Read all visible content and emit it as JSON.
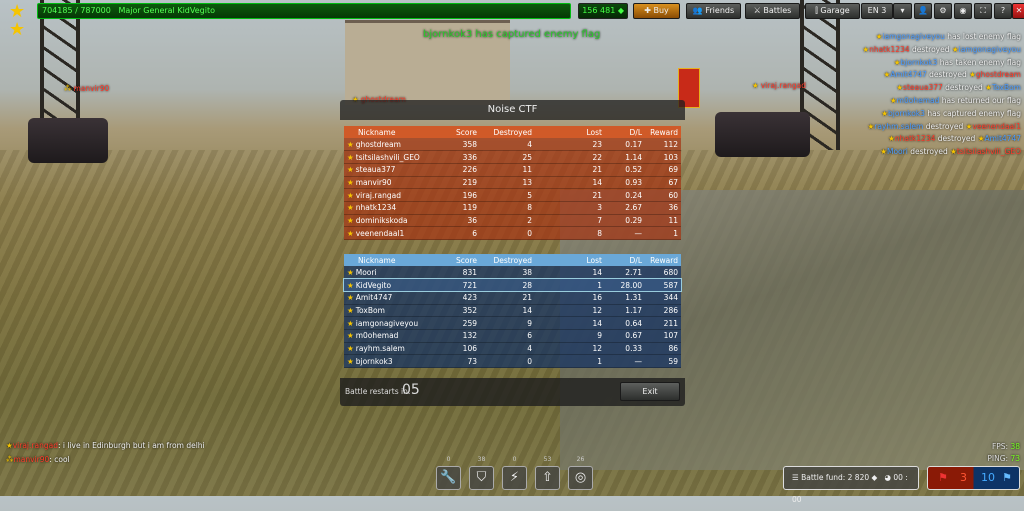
{
  "topbar": {
    "experience": "704185 / 787000",
    "rank_name": "Major General KidVegito",
    "crystals": "156 481",
    "buy": "Buy",
    "friends": "Friends",
    "battles": "Battles",
    "garage": "Garage",
    "language": "EN 3"
  },
  "capture_message": "bjornkok3 has captured enemy flag",
  "overhead_names": [
    "manvir90",
    "ghostdream",
    "viraj.rangad"
  ],
  "kill_feed": [
    {
      "a": "iamgonagiveyou",
      "a_team": "blue",
      "action": "has lost enemy flag",
      "b": "",
      "b_team": ""
    },
    {
      "a": "nhatk1234",
      "a_team": "red",
      "action": "destroyed",
      "b": "iamgonagiveyou",
      "b_team": "blue"
    },
    {
      "a": "bjornkok3",
      "a_team": "blue",
      "action": "has taken enemy flag",
      "b": "",
      "b_team": ""
    },
    {
      "a": "Amit4747",
      "a_team": "blue",
      "action": "destroyed",
      "b": "ghostdream",
      "b_team": "red"
    },
    {
      "a": "steaua377",
      "a_team": "red",
      "action": "destroyed",
      "b": "ToxBom",
      "b_team": "blue"
    },
    {
      "a": "m0ohemad",
      "a_team": "blue",
      "action": "has returned our flag",
      "b": "",
      "b_team": ""
    },
    {
      "a": "bjornkok3",
      "a_team": "blue",
      "action": "has captured enemy flag",
      "b": "",
      "b_team": ""
    },
    {
      "a": "rayhm.salem",
      "a_team": "blue",
      "action": "destroyed",
      "b": "veenendaal1",
      "b_team": "red"
    },
    {
      "a": "nhatk1234",
      "a_team": "red",
      "action": "destroyed",
      "b": "Amit4747",
      "b_team": "blue"
    },
    {
      "a": "Moori",
      "a_team": "blue",
      "action": "destroyed",
      "b": "tsitsilashvili_GEO",
      "b_team": "red"
    }
  ],
  "panel": {
    "title": "Noise CTF",
    "columns": [
      "Nickname",
      "Score",
      "Destroyed",
      "Lost",
      "D/L",
      "Reward"
    ],
    "red_team": [
      [
        "ghostdream",
        "358",
        "4",
        "23",
        "0.17",
        "112"
      ],
      [
        "tsitsilashvili_GEO",
        "336",
        "25",
        "22",
        "1.14",
        "103"
      ],
      [
        "steaua377",
        "226",
        "11",
        "21",
        "0.52",
        "69"
      ],
      [
        "manvir90",
        "219",
        "13",
        "14",
        "0.93",
        "67"
      ],
      [
        "viraj.rangad",
        "196",
        "5",
        "21",
        "0.24",
        "60"
      ],
      [
        "nhatk1234",
        "119",
        "8",
        "3",
        "2.67",
        "36"
      ],
      [
        "dominikskoda",
        "36",
        "2",
        "7",
        "0.29",
        "11"
      ],
      [
        "veenendaal1",
        "6",
        "0",
        "8",
        "—",
        "1"
      ]
    ],
    "blue_team": [
      [
        "Moori",
        "831",
        "38",
        "14",
        "2.71",
        "680"
      ],
      [
        "KidVegito",
        "721",
        "28",
        "1",
        "28.00",
        "587"
      ],
      [
        "Amit4747",
        "423",
        "21",
        "16",
        "1.31",
        "344"
      ],
      [
        "ToxBom",
        "352",
        "14",
        "12",
        "1.17",
        "286"
      ],
      [
        "iamgonagiveyou",
        "259",
        "9",
        "14",
        "0.64",
        "211"
      ],
      [
        "m0ohemad",
        "132",
        "6",
        "9",
        "0.67",
        "107"
      ],
      [
        "rayhm.salem",
        "106",
        "4",
        "12",
        "0.33",
        "86"
      ],
      [
        "bjornkok3",
        "73",
        "0",
        "1",
        "—",
        "59"
      ]
    ],
    "current_player": "KidVegito",
    "restart_label": "Battle restarts in:",
    "restart_value": "05",
    "exit": "Exit"
  },
  "chat": [
    {
      "user": "viraj.rangad",
      "text": "i live in Edinburgh but i am from delhi"
    },
    {
      "user": "manvir90",
      "text": "cool"
    }
  ],
  "supplies": [
    {
      "icon": "repair-kit-icon",
      "count": "0"
    },
    {
      "icon": "armor-icon",
      "count": "38"
    },
    {
      "icon": "double-damage-icon",
      "count": "0"
    },
    {
      "icon": "speed-boost-icon",
      "count": "53"
    },
    {
      "icon": "mine-icon",
      "count": "26"
    }
  ],
  "stats": {
    "fps_label": "FPS:",
    "fps": "38",
    "ping_label": "PING:",
    "ping": "73"
  },
  "battle_fund": "Battle fund: 2 820",
  "timer": "00 : 00",
  "flags": {
    "red": "3",
    "blue": "10"
  },
  "colors": {
    "red_team": "#ff3a2a",
    "blue_team": "#4a9cff",
    "xp": "#5f5"
  }
}
